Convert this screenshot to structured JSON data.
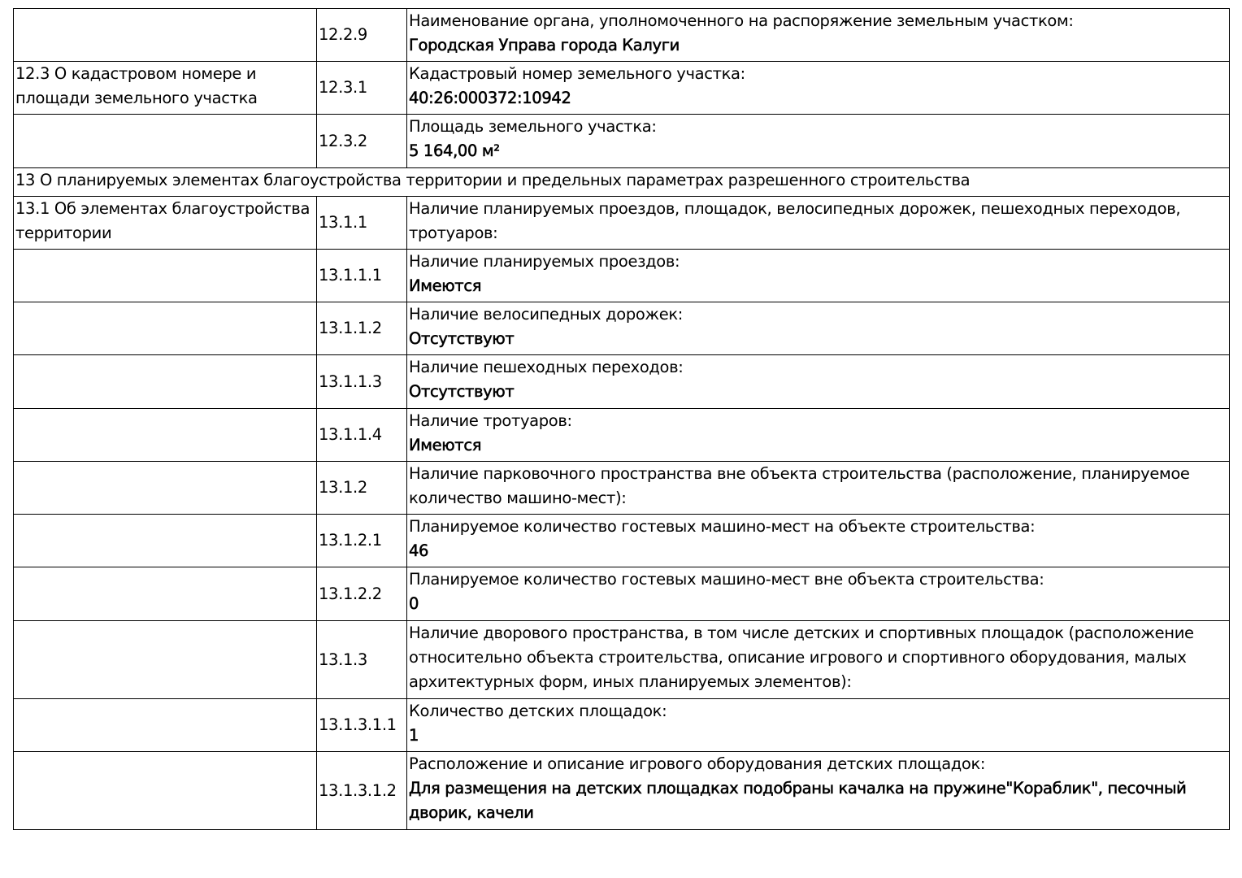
{
  "rows": [
    {
      "type": "item",
      "section": "",
      "code": "12.2.9",
      "label": "Наименование органа, уполномоченного на распоряжение земельным участком:",
      "value": "Городская Управа города Калуги",
      "h": 65
    },
    {
      "type": "item",
      "section": "12.3 О кадастровом номере и площади земельного участка",
      "code": "12.3.1",
      "label": "Кадастровый номер земельного участка:",
      "value": "40:26:000372:10942",
      "h": 65
    },
    {
      "type": "item",
      "section": "",
      "code": "12.3.2",
      "label": "Площадь земельного участка:",
      "value": "5 164,00 м²",
      "h": 66
    },
    {
      "type": "header",
      "label": "13 О планируемых элементах благоустройства территории и предельных параметрах разрешенного строительства",
      "h": 35
    },
    {
      "type": "item",
      "section": "13.1 Об элементах благоустройства территории",
      "code": "13.1.1",
      "label": "Наличие планируемых проездов, площадок, велосипедных дорожек, пешеходных переходов, тротуаров:",
      "value": "",
      "h": 65
    },
    {
      "type": "item",
      "section": "",
      "code": "13.1.1.1",
      "label": "Наличие планируемых проездов:",
      "value": "Имеются",
      "h": 65
    },
    {
      "type": "item",
      "section": "",
      "code": "13.1.1.2",
      "label": "Наличие велосипедных дорожек:",
      "value": "Отсутствуют",
      "h": 65
    },
    {
      "type": "item",
      "section": "",
      "code": "13.1.1.3",
      "label": "Наличие пешеходных переходов:",
      "value": "Отсутствуют",
      "h": 66
    },
    {
      "type": "item",
      "section": "",
      "code": "13.1.1.4",
      "label": "Наличие тротуаров:",
      "value": "Имеются",
      "h": 65
    },
    {
      "type": "item",
      "section": "",
      "code": "13.1.2",
      "label": "Наличие парковочного пространства вне объекта строительства (расположение, планируемое количество машино-мест):",
      "value": "",
      "h": 65
    },
    {
      "type": "item",
      "section": "",
      "code": "13.1.2.1",
      "label": "Планируемое количество гостевых машино-мест на объекте строительства:",
      "value": "46",
      "h": 65
    },
    {
      "type": "item",
      "section": "",
      "code": "13.1.2.2",
      "label": "Планируемое количество гостевых машино-мест вне объекта строительства:",
      "value": "0",
      "h": 66
    },
    {
      "type": "item",
      "section": "",
      "code": "13.1.3",
      "label": "Наличие дворового пространства, в том числе детских и спортивных площадок (расположение относительно объекта строительства, описание игрового и спортивного оборудования, малых архитектурных форм, иных планируемых элементов):",
      "value": "",
      "h": 96
    },
    {
      "type": "item",
      "section": "",
      "code": "13.1.3.1.1",
      "label": "Количество детских площадок:",
      "value": "1",
      "h": 65
    },
    {
      "type": "item",
      "section": "",
      "code": "13.1.3.1.2",
      "label": "Расположение и описание игрового оборудования детских площадок:",
      "value": "Для размещения на детских площадках подобраны качалка на пружине\"Кораблик\", песочный дворик, качели",
      "h": 96
    }
  ]
}
